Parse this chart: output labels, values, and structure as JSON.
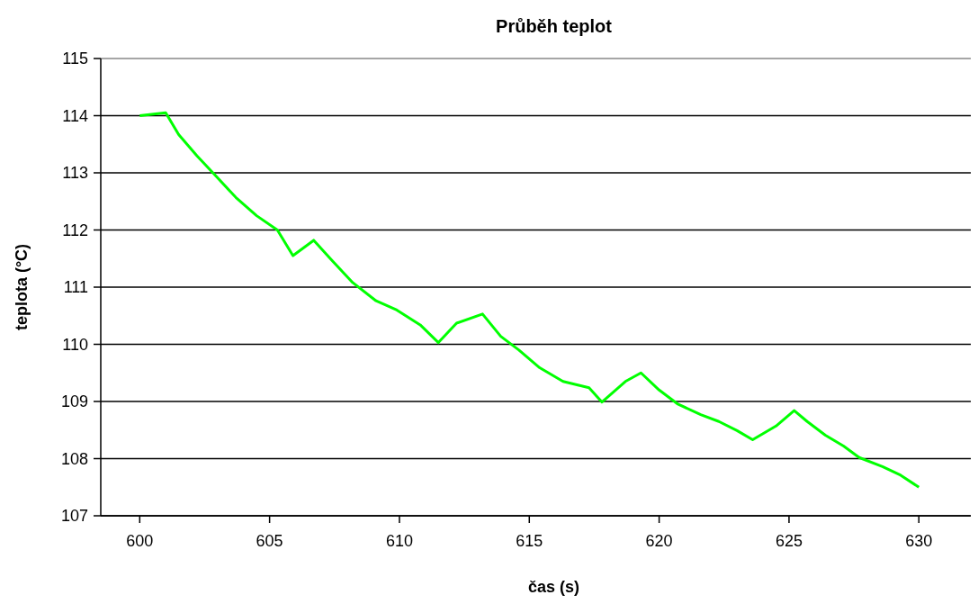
{
  "chart_data": {
    "type": "line",
    "title": "Průběh teplot",
    "xlabel": "čas (s)",
    "ylabel": "teplota (°C)",
    "xlim": [
      598.5,
      632
    ],
    "xticks": [
      600,
      605,
      610,
      615,
      620,
      625,
      630
    ],
    "ylim": [
      107,
      115
    ],
    "yticks": [
      107,
      108,
      109,
      110,
      111,
      112,
      113,
      114,
      115
    ],
    "grid": "y",
    "marker": "none",
    "line_style": "solid",
    "series": [
      {
        "color": "#00ff00",
        "x": [
          600,
          601,
          601.5,
          602.2,
          602.9,
          603.7,
          604.5,
          605.3,
          605.9,
          606.7,
          607.4,
          608.2,
          609.1,
          609.9,
          610.8,
          611.5,
          612.2,
          613.2,
          613.9,
          614.6,
          615.4,
          616.3,
          617.3,
          617.8,
          618.7,
          619.3,
          620,
          620.7,
          621.6,
          622.3,
          623,
          623.6,
          624.5,
          625.2,
          625.7,
          626.4,
          627.1,
          627.7,
          628.6,
          629.3,
          630
        ],
        "values": [
          114,
          114.05,
          113.67,
          113.3,
          112.96,
          112.57,
          112.25,
          112,
          111.55,
          111.82,
          111.47,
          111.08,
          110.76,
          110.6,
          110.34,
          110.03,
          110.37,
          110.53,
          110.14,
          109.9,
          109.59,
          109.35,
          109.24,
          108.99,
          109.35,
          109.5,
          109.2,
          108.96,
          108.77,
          108.65,
          108.49,
          108.33,
          108.57,
          108.84,
          108.65,
          108.41,
          108.22,
          108.02,
          107.86,
          107.71,
          107.5
        ]
      }
    ]
  }
}
